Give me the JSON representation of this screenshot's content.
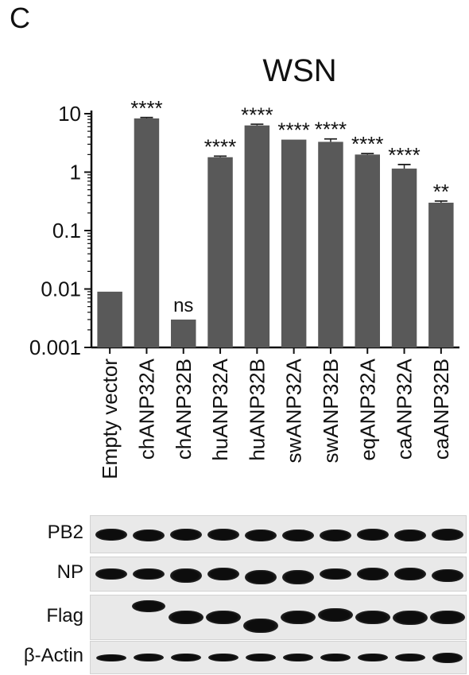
{
  "panel_letter": "C",
  "chart_data": {
    "type": "bar",
    "title": "WSN",
    "xlabel": "",
    "ylabel": "",
    "yscale": "log",
    "ylim": [
      0.001,
      10
    ],
    "yticks": [
      0.001,
      0.01,
      0.1,
      1,
      10
    ],
    "yticklabels": [
      "0.001",
      "0.01",
      "0.1",
      "1",
      "10"
    ],
    "categories": [
      "Empty vector",
      "chANP32A",
      "chANP32B",
      "huANP32A",
      "huANP32B",
      "swANP32A",
      "swANP32B",
      "eqANP32A",
      "caANP32A",
      "caANP32B"
    ],
    "values": [
      0.009,
      8.3,
      0.003,
      1.8,
      6.3,
      3.6,
      3.3,
      2.0,
      1.15,
      0.3
    ],
    "error": [
      0,
      0.3,
      0,
      0.08,
      0.3,
      0,
      0.4,
      0.08,
      0.2,
      0.02
    ],
    "significance": [
      "",
      "****",
      "ns",
      "****",
      "****",
      "****",
      "****",
      "****",
      "****",
      "**"
    ],
    "bar_color": "#595959",
    "grid": false,
    "legend": "none"
  },
  "blot": {
    "rows": [
      {
        "label": "PB2"
      },
      {
        "label": "NP"
      },
      {
        "label": "Flag"
      },
      {
        "label": "β-Actin"
      }
    ]
  }
}
